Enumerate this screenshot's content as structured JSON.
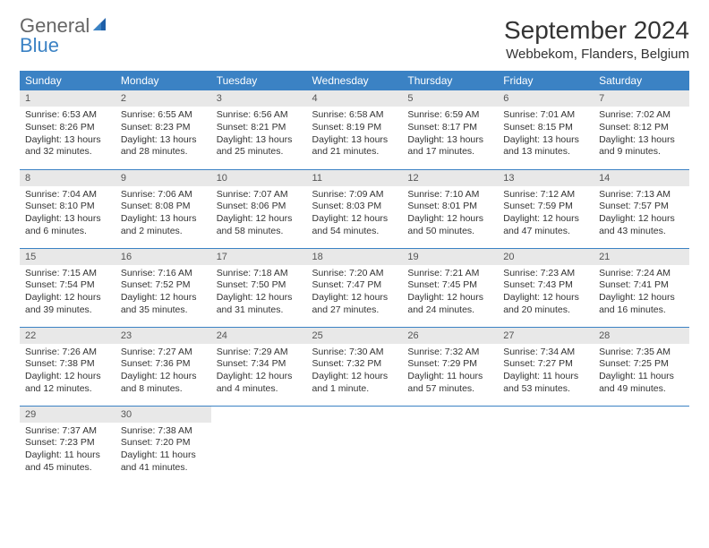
{
  "logo": {
    "text1": "General",
    "text2": "Blue",
    "icon_color": "#1e5fa8"
  },
  "header": {
    "month_title": "September 2024",
    "location": "Webbekom, Flanders, Belgium"
  },
  "colors": {
    "header_bg": "#3b82c4",
    "header_text": "#ffffff",
    "daynum_bg": "#e8e8e8",
    "border": "#3b82c4"
  },
  "weekdays": [
    "Sunday",
    "Monday",
    "Tuesday",
    "Wednesday",
    "Thursday",
    "Friday",
    "Saturday"
  ],
  "weeks": [
    [
      {
        "n": "1",
        "sr": "6:53 AM",
        "ss": "8:26 PM",
        "dl": "13 hours and 32 minutes."
      },
      {
        "n": "2",
        "sr": "6:55 AM",
        "ss": "8:23 PM",
        "dl": "13 hours and 28 minutes."
      },
      {
        "n": "3",
        "sr": "6:56 AM",
        "ss": "8:21 PM",
        "dl": "13 hours and 25 minutes."
      },
      {
        "n": "4",
        "sr": "6:58 AM",
        "ss": "8:19 PM",
        "dl": "13 hours and 21 minutes."
      },
      {
        "n": "5",
        "sr": "6:59 AM",
        "ss": "8:17 PM",
        "dl": "13 hours and 17 minutes."
      },
      {
        "n": "6",
        "sr": "7:01 AM",
        "ss": "8:15 PM",
        "dl": "13 hours and 13 minutes."
      },
      {
        "n": "7",
        "sr": "7:02 AM",
        "ss": "8:12 PM",
        "dl": "13 hours and 9 minutes."
      }
    ],
    [
      {
        "n": "8",
        "sr": "7:04 AM",
        "ss": "8:10 PM",
        "dl": "13 hours and 6 minutes."
      },
      {
        "n": "9",
        "sr": "7:06 AM",
        "ss": "8:08 PM",
        "dl": "13 hours and 2 minutes."
      },
      {
        "n": "10",
        "sr": "7:07 AM",
        "ss": "8:06 PM",
        "dl": "12 hours and 58 minutes."
      },
      {
        "n": "11",
        "sr": "7:09 AM",
        "ss": "8:03 PM",
        "dl": "12 hours and 54 minutes."
      },
      {
        "n": "12",
        "sr": "7:10 AM",
        "ss": "8:01 PM",
        "dl": "12 hours and 50 minutes."
      },
      {
        "n": "13",
        "sr": "7:12 AM",
        "ss": "7:59 PM",
        "dl": "12 hours and 47 minutes."
      },
      {
        "n": "14",
        "sr": "7:13 AM",
        "ss": "7:57 PM",
        "dl": "12 hours and 43 minutes."
      }
    ],
    [
      {
        "n": "15",
        "sr": "7:15 AM",
        "ss": "7:54 PM",
        "dl": "12 hours and 39 minutes."
      },
      {
        "n": "16",
        "sr": "7:16 AM",
        "ss": "7:52 PM",
        "dl": "12 hours and 35 minutes."
      },
      {
        "n": "17",
        "sr": "7:18 AM",
        "ss": "7:50 PM",
        "dl": "12 hours and 31 minutes."
      },
      {
        "n": "18",
        "sr": "7:20 AM",
        "ss": "7:47 PM",
        "dl": "12 hours and 27 minutes."
      },
      {
        "n": "19",
        "sr": "7:21 AM",
        "ss": "7:45 PM",
        "dl": "12 hours and 24 minutes."
      },
      {
        "n": "20",
        "sr": "7:23 AM",
        "ss": "7:43 PM",
        "dl": "12 hours and 20 minutes."
      },
      {
        "n": "21",
        "sr": "7:24 AM",
        "ss": "7:41 PM",
        "dl": "12 hours and 16 minutes."
      }
    ],
    [
      {
        "n": "22",
        "sr": "7:26 AM",
        "ss": "7:38 PM",
        "dl": "12 hours and 12 minutes."
      },
      {
        "n": "23",
        "sr": "7:27 AM",
        "ss": "7:36 PM",
        "dl": "12 hours and 8 minutes."
      },
      {
        "n": "24",
        "sr": "7:29 AM",
        "ss": "7:34 PM",
        "dl": "12 hours and 4 minutes."
      },
      {
        "n": "25",
        "sr": "7:30 AM",
        "ss": "7:32 PM",
        "dl": "12 hours and 1 minute."
      },
      {
        "n": "26",
        "sr": "7:32 AM",
        "ss": "7:29 PM",
        "dl": "11 hours and 57 minutes."
      },
      {
        "n": "27",
        "sr": "7:34 AM",
        "ss": "7:27 PM",
        "dl": "11 hours and 53 minutes."
      },
      {
        "n": "28",
        "sr": "7:35 AM",
        "ss": "7:25 PM",
        "dl": "11 hours and 49 minutes."
      }
    ],
    [
      {
        "n": "29",
        "sr": "7:37 AM",
        "ss": "7:23 PM",
        "dl": "11 hours and 45 minutes."
      },
      {
        "n": "30",
        "sr": "7:38 AM",
        "ss": "7:20 PM",
        "dl": "11 hours and 41 minutes."
      },
      null,
      null,
      null,
      null,
      null
    ]
  ],
  "labels": {
    "sunrise": "Sunrise:",
    "sunset": "Sunset:",
    "daylight": "Daylight:"
  }
}
